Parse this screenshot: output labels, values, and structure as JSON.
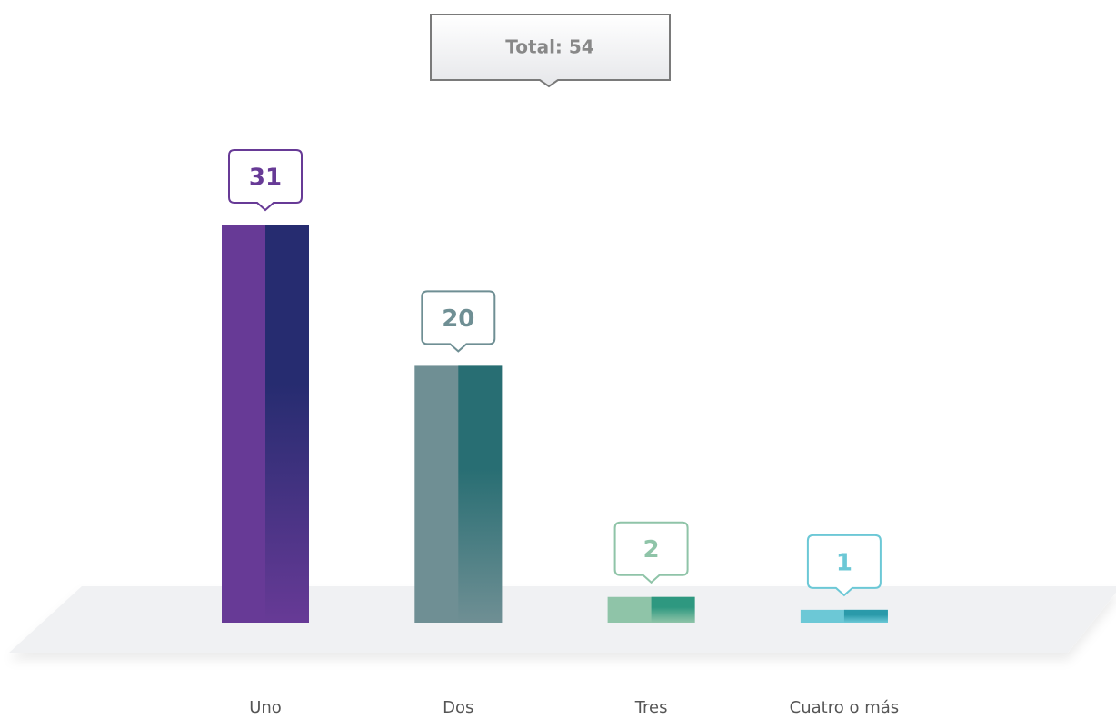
{
  "chart_data": {
    "type": "bar",
    "annotation": "Total: 54",
    "categories": [
      "Uno",
      "Dos",
      "Tres",
      "Cuatro o más"
    ],
    "values": [
      31,
      20,
      2,
      1
    ],
    "colors": [
      "#673a96",
      "#6f8f94",
      "#8fc4a8",
      "#6cc8d6"
    ],
    "accent_colors": [
      "#262c70",
      "#286e73",
      "#2e9880",
      "#2a9aaa"
    ]
  }
}
